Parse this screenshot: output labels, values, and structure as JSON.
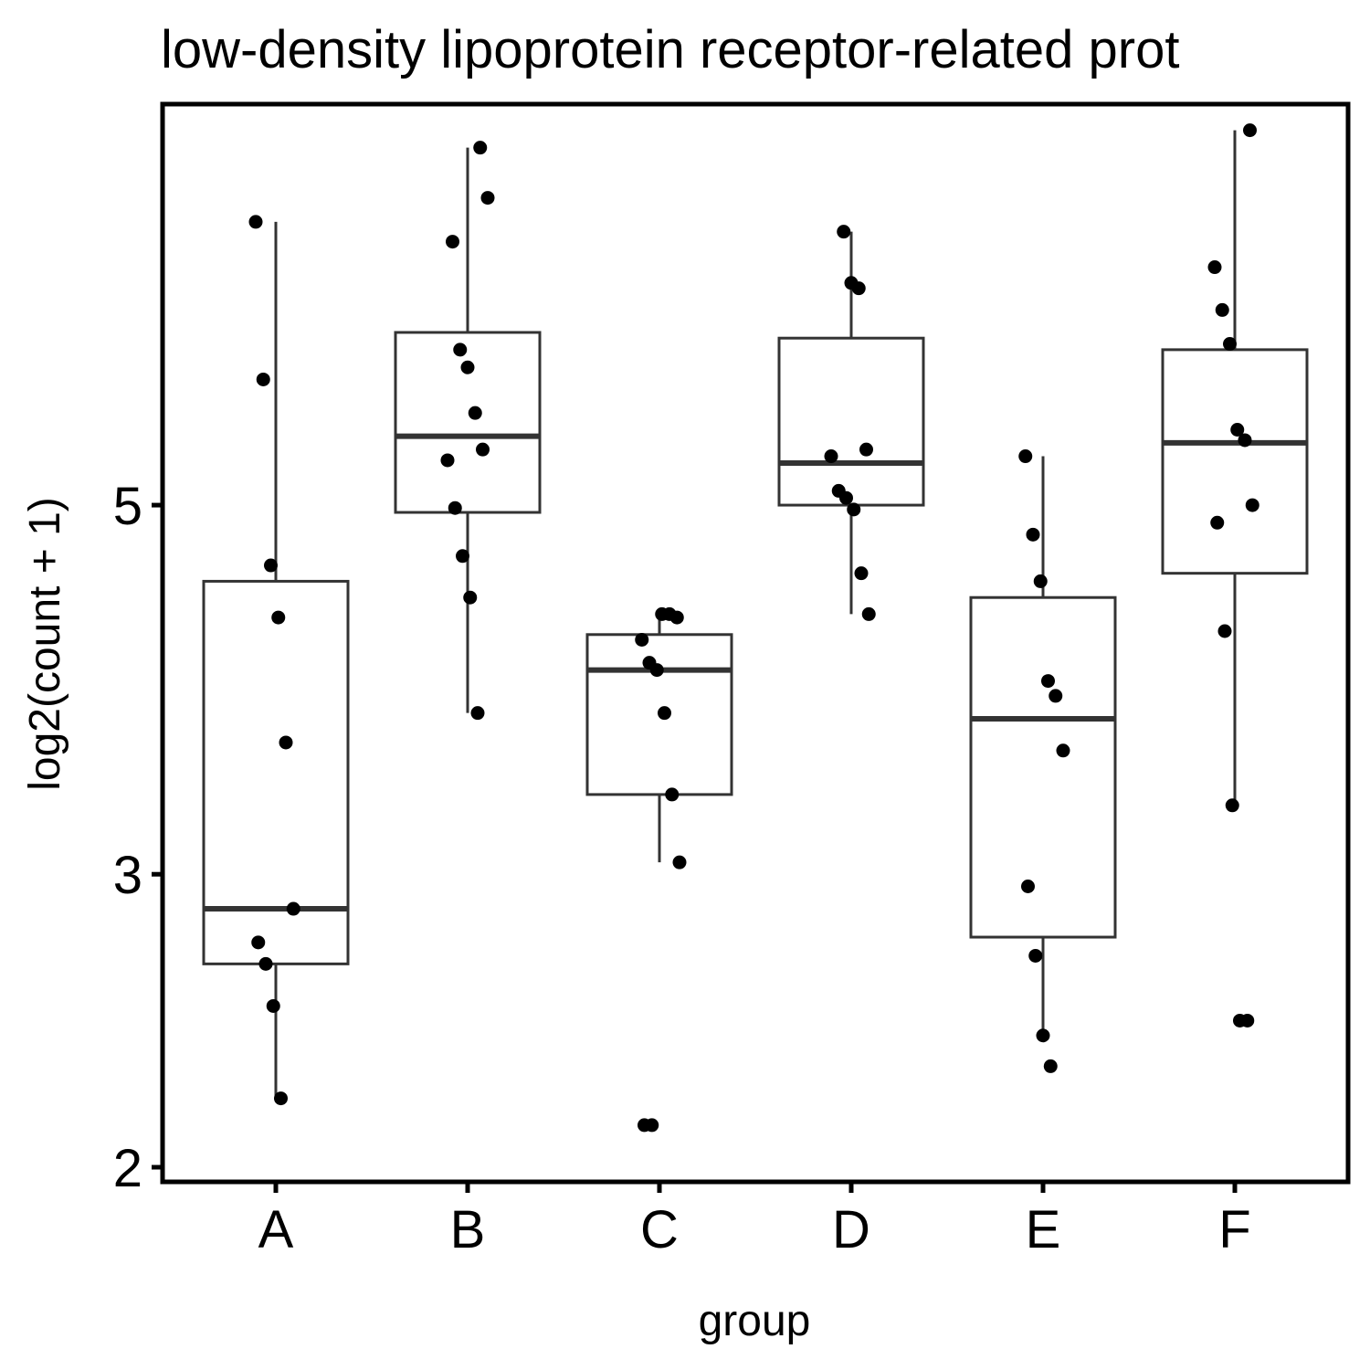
{
  "chart_data": {
    "type": "boxplot",
    "title": "low-density lipoprotein receptor-related prot",
    "xlabel": "group",
    "ylabel": "log2(count + 1)",
    "y_scale": "log2",
    "ylim": [
      2,
      8.6
    ],
    "y_ticks": [
      2,
      3,
      5
    ],
    "grid": false,
    "legend": "none",
    "colors": {
      "box": "#333333",
      "point": "#000000",
      "panel_border": "#000000"
    },
    "categories": [
      "A",
      "B",
      "C",
      "D",
      "E",
      "F"
    ],
    "boxes": [
      {
        "group": "A",
        "whisker_low": 2.2,
        "q1": 2.65,
        "median": 2.86,
        "q3": 4.5,
        "whisker_high": 7.4
      },
      {
        "group": "B",
        "whisker_low": 3.75,
        "q1": 4.95,
        "median": 5.5,
        "q3": 6.35,
        "whisker_high": 8.2
      },
      {
        "group": "C",
        "whisker_low": 3.05,
        "q1": 3.35,
        "median": 3.98,
        "q3": 4.18,
        "whisker_high": 4.3
      },
      {
        "group": "D",
        "whisker_low": 4.3,
        "q1": 5.0,
        "median": 5.3,
        "q3": 6.3,
        "whisker_high": 7.3
      },
      {
        "group": "E",
        "whisker_low": 2.4,
        "q1": 2.75,
        "median": 3.72,
        "q3": 4.4,
        "whisker_high": 5.35
      },
      {
        "group": "F",
        "whisker_low": 3.3,
        "q1": 4.55,
        "median": 5.45,
        "q3": 6.2,
        "whisker_high": 8.4
      }
    ],
    "points": [
      {
        "group": "A",
        "values": [
          7.4,
          5.95,
          4.6,
          4.28,
          3.6,
          2.86,
          2.73,
          2.65,
          2.5,
          2.2
        ]
      },
      {
        "group": "B",
        "values": [
          8.2,
          7.65,
          7.2,
          6.2,
          6.05,
          5.68,
          5.4,
          5.32,
          4.98,
          4.66,
          4.4,
          3.75
        ]
      },
      {
        "group": "C",
        "values": [
          4.3,
          4.3,
          4.28,
          4.15,
          4.02,
          3.98,
          3.75,
          3.35,
          3.05,
          2.12,
          2.12
        ]
      },
      {
        "group": "D",
        "values": [
          7.3,
          6.8,
          6.75,
          5.4,
          5.35,
          5.1,
          5.05,
          4.97,
          4.55,
          4.3
        ]
      },
      {
        "group": "E",
        "values": [
          5.35,
          4.8,
          4.5,
          3.92,
          3.84,
          3.56,
          2.95,
          2.68,
          2.4,
          2.3
        ]
      },
      {
        "group": "F",
        "values": [
          8.4,
          6.95,
          6.55,
          6.25,
          5.55,
          5.47,
          5.0,
          4.88,
          4.2,
          3.3,
          2.45,
          2.45
        ]
      }
    ]
  }
}
